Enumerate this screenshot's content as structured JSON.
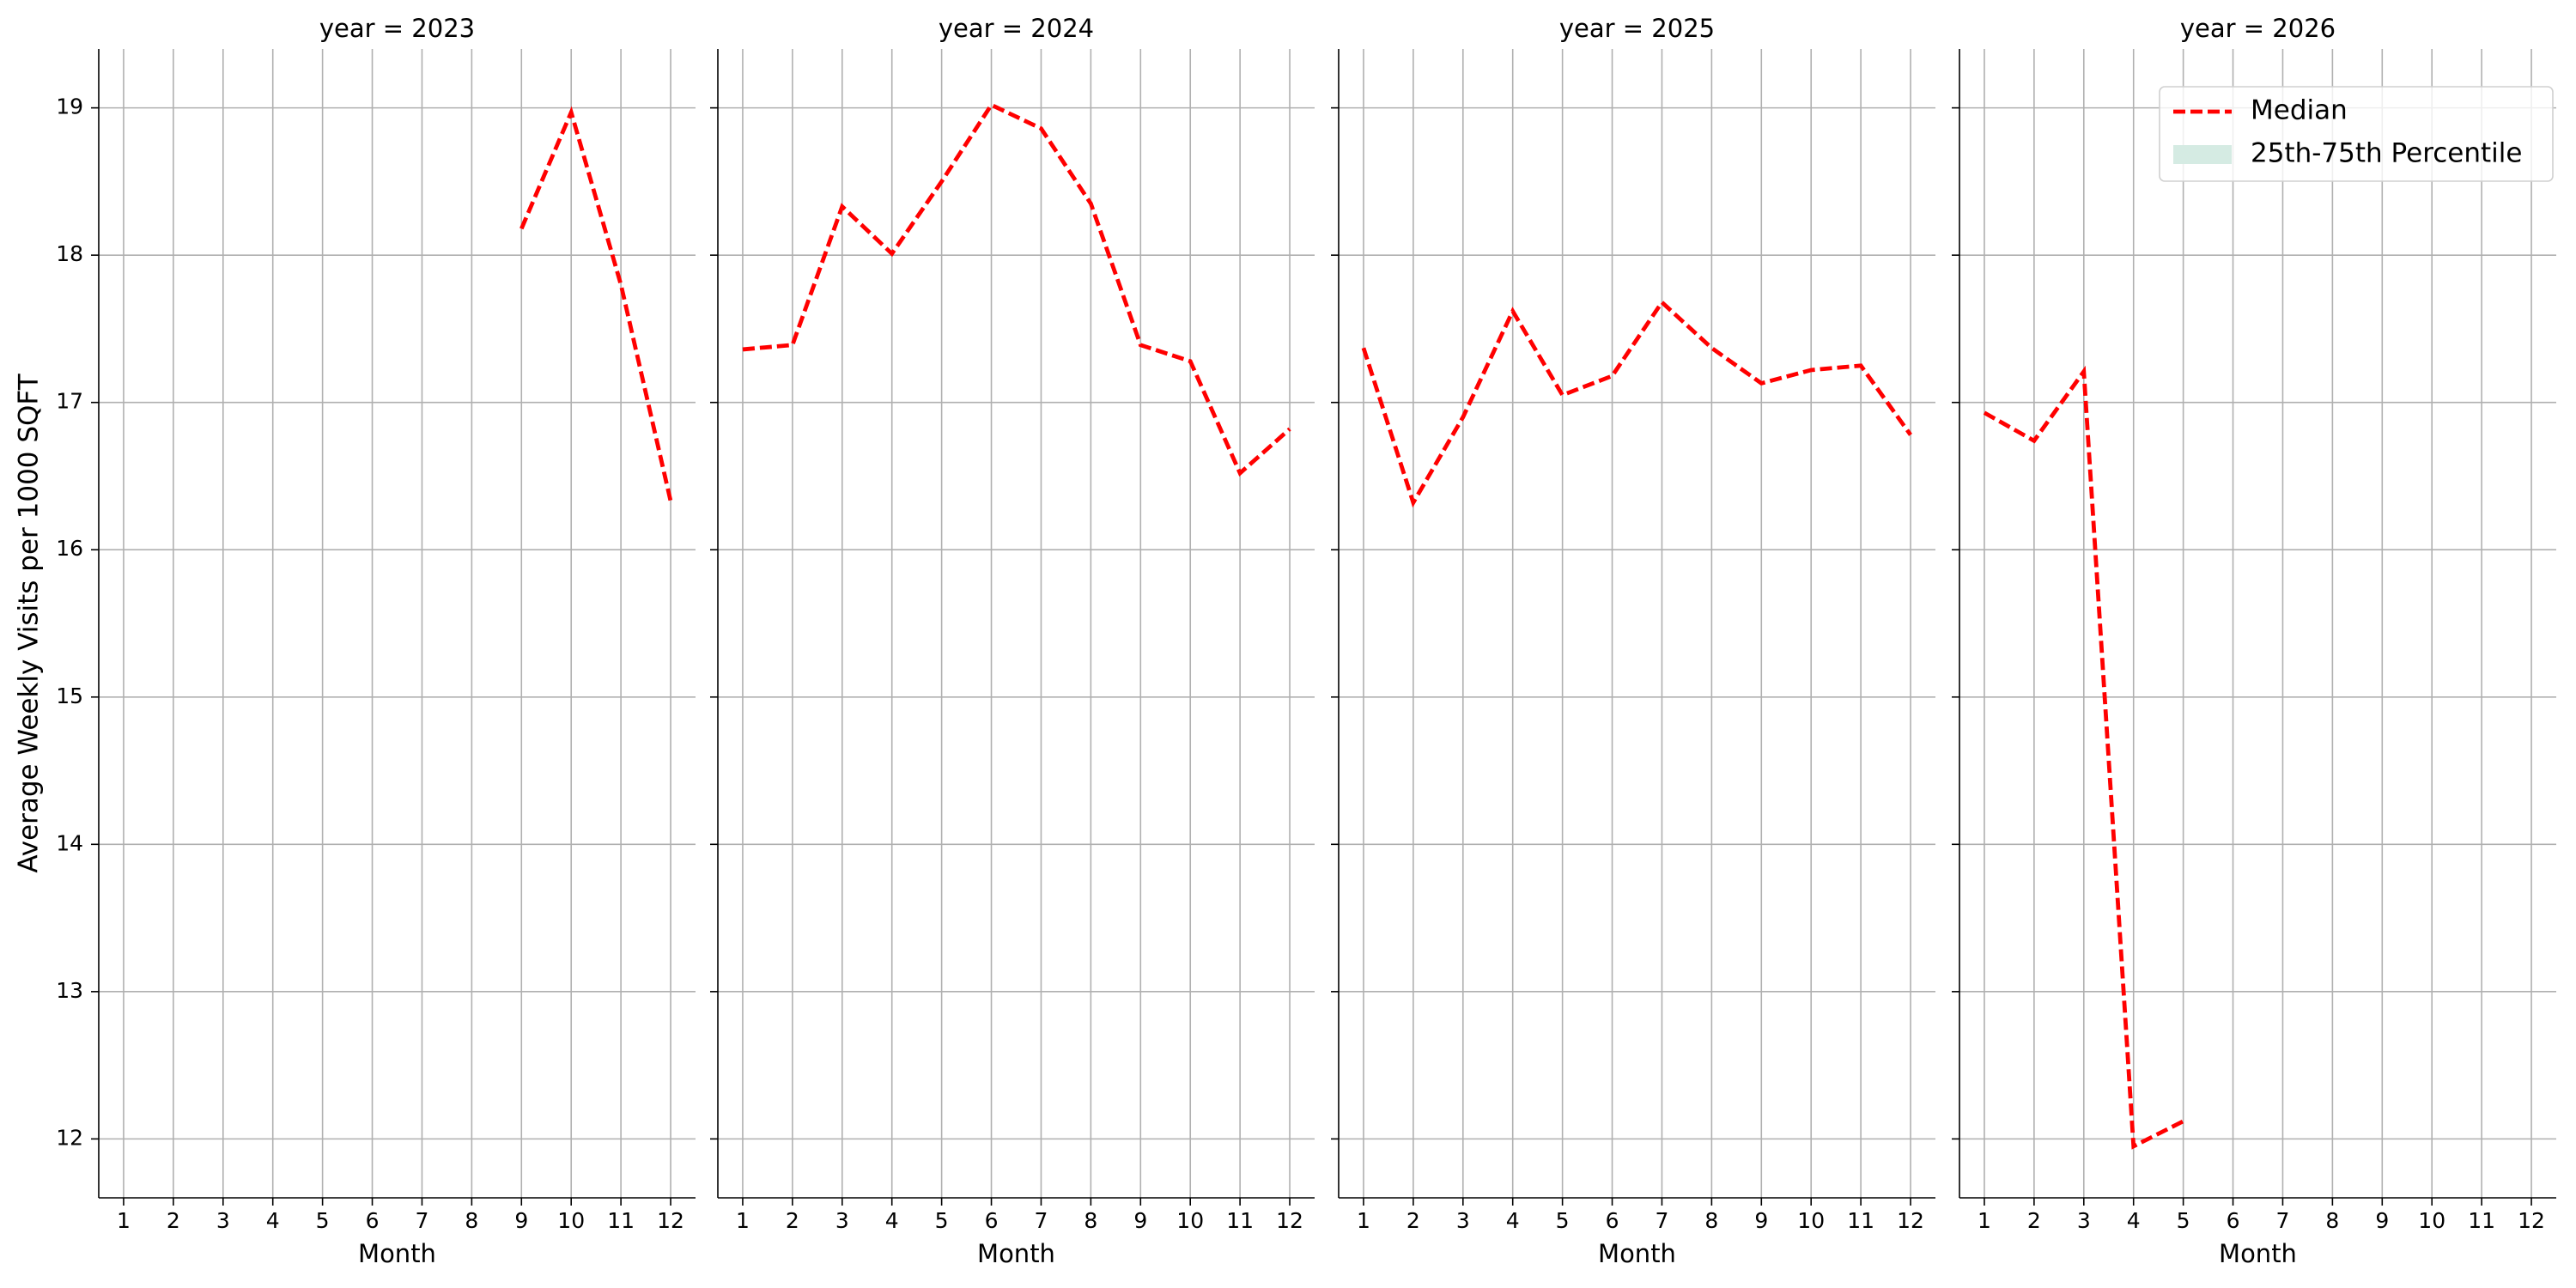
{
  "chart_data": [
    {
      "type": "line",
      "title": "year = 2023",
      "xlabel": "Month",
      "ylabel": "Average Weekly Visits per 1000 SQFT",
      "x": [
        9,
        10,
        11,
        12
      ],
      "series": [
        {
          "name": "Median",
          "color": "#ff0000",
          "values": [
            18.18,
            18.97,
            17.8,
            16.33
          ]
        }
      ],
      "xlim": [
        0.5,
        12.5
      ],
      "xticks": [
        1,
        2,
        3,
        4,
        5,
        6,
        7,
        8,
        9,
        10,
        11,
        12
      ],
      "ylim": [
        11.6,
        19.4
      ],
      "yticks": [
        12,
        13,
        14,
        15,
        16,
        17,
        18,
        19
      ],
      "grid": true
    },
    {
      "type": "line",
      "title": "year = 2024",
      "xlabel": "Month",
      "x": [
        1,
        2,
        3,
        4,
        5,
        6,
        7,
        8,
        9,
        10,
        11,
        12
      ],
      "series": [
        {
          "name": "Median",
          "color": "#ff0000",
          "values": [
            17.36,
            17.39,
            18.33,
            18.01,
            18.5,
            19.02,
            18.86,
            18.35,
            17.39,
            17.28,
            16.52,
            16.82
          ]
        }
      ],
      "xlim": [
        0.5,
        12.5
      ],
      "xticks": [
        1,
        2,
        3,
        4,
        5,
        6,
        7,
        8,
        9,
        10,
        11,
        12
      ],
      "ylim": [
        11.6,
        19.4
      ],
      "yticks": [
        12,
        13,
        14,
        15,
        16,
        17,
        18,
        19
      ],
      "grid": true
    },
    {
      "type": "line",
      "title": "year = 2025",
      "xlabel": "Month",
      "x": [
        1,
        2,
        3,
        4,
        5,
        6,
        7,
        8,
        9,
        10,
        11,
        12
      ],
      "series": [
        {
          "name": "Median",
          "color": "#ff0000",
          "values": [
            17.37,
            16.32,
            16.9,
            17.62,
            17.05,
            17.18,
            17.68,
            17.37,
            17.13,
            17.22,
            17.25,
            16.78
          ]
        }
      ],
      "xlim": [
        0.5,
        12.5
      ],
      "xticks": [
        1,
        2,
        3,
        4,
        5,
        6,
        7,
        8,
        9,
        10,
        11,
        12
      ],
      "ylim": [
        11.6,
        19.4
      ],
      "yticks": [
        12,
        13,
        14,
        15,
        16,
        17,
        18,
        19
      ],
      "grid": true
    },
    {
      "type": "line",
      "title": "year = 2026",
      "xlabel": "Month",
      "x": [
        1,
        2,
        3,
        4,
        5
      ],
      "series": [
        {
          "name": "Median",
          "color": "#ff0000",
          "values": [
            16.93,
            16.74,
            17.21,
            11.95,
            12.12
          ]
        }
      ],
      "xlim": [
        0.5,
        12.5
      ],
      "xticks": [
        1,
        2,
        3,
        4,
        5,
        6,
        7,
        8,
        9,
        10,
        11,
        12
      ],
      "ylim": [
        11.6,
        19.4
      ],
      "yticks": [
        12,
        13,
        14,
        15,
        16,
        17,
        18,
        19
      ],
      "grid": true,
      "legend": {
        "loc": "upper right",
        "entries": [
          {
            "label": "Median",
            "color": "#ff0000",
            "style": "dashed"
          },
          {
            "label": "25th-75th Percentile",
            "color": "#d5ebe3",
            "style": "patch"
          }
        ]
      }
    }
  ]
}
